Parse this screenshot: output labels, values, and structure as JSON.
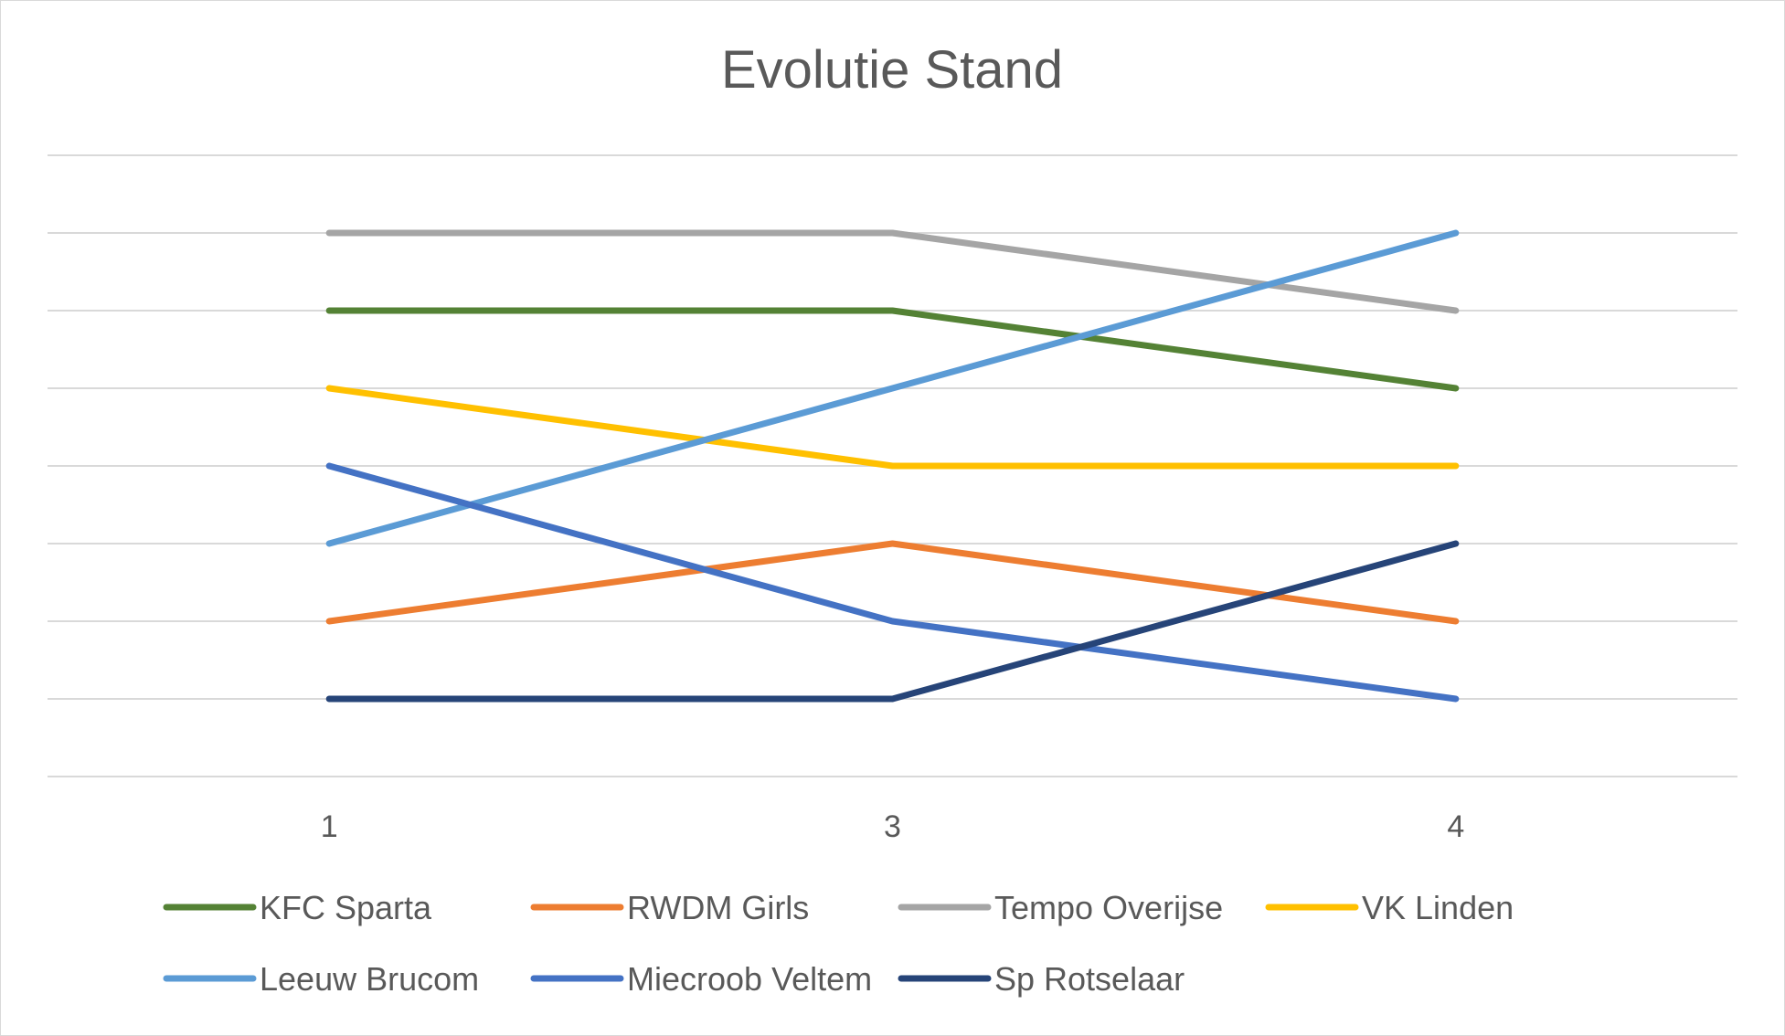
{
  "chart_data": {
    "type": "line",
    "title": "Evolutie  Stand",
    "xlabel": "",
    "ylabel": "",
    "categories": [
      "1",
      "3",
      "4"
    ],
    "ylim": [
      0,
      8
    ],
    "grid": true,
    "legend_position": "bottom",
    "series": [
      {
        "name": "KFC Sparta",
        "values": [
          6,
          6,
          5
        ],
        "color": "#548235"
      },
      {
        "name": "RWDM Girls",
        "values": [
          2,
          3,
          2
        ],
        "color": "#ED7D31"
      },
      {
        "name": "Tempo Overijse",
        "values": [
          7,
          7,
          6
        ],
        "color": "#A5A5A5"
      },
      {
        "name": "VK Linden",
        "values": [
          5,
          4,
          4
        ],
        "color": "#FFC000"
      },
      {
        "name": "Leeuw Brucom",
        "values": [
          3,
          5,
          7
        ],
        "color": "#5B9BD5"
      },
      {
        "name": "Miecroob Veltem",
        "values": [
          4,
          2,
          1
        ],
        "color": "#4472C4"
      },
      {
        "name": "Sp Rotselaar",
        "values": [
          1,
          1,
          3
        ],
        "color": "#264478"
      }
    ]
  }
}
